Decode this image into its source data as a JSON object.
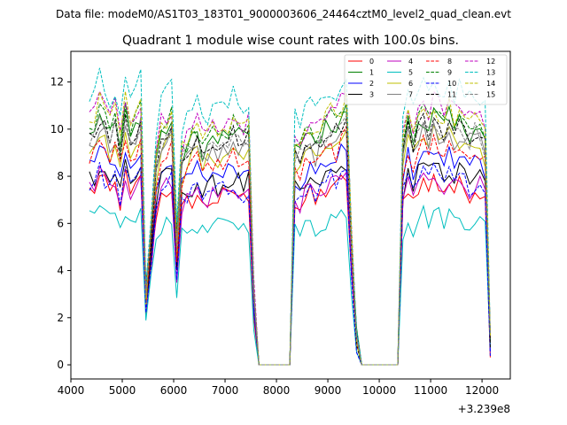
{
  "suptitle": "Data file: modeM0/AS1T03_183T01_9000003606_24464cztM0_level2_quad_clean.evt",
  "chart_data": {
    "type": "line",
    "title": "Quadrant 1 module wise count rates with 100.0s bins.",
    "xlabel": "",
    "ylabel": "",
    "offset_label": "+3.239e8",
    "xlim": [
      4000,
      12550
    ],
    "ylim": [
      -0.6,
      13.3
    ],
    "xticks": [
      4000,
      5000,
      6000,
      7000,
      8000,
      9000,
      10000,
      11000,
      12000
    ],
    "yticks": [
      0,
      2,
      4,
      6,
      8,
      10,
      12
    ],
    "grid": false,
    "legend_position": "top-right",
    "x": [
      4360,
      4460,
      4560,
      4660,
      4760,
      4860,
      4960,
      5060,
      5160,
      5260,
      5360,
      5460,
      5560,
      5660,
      5760,
      5860,
      5960,
      6060,
      6160,
      6260,
      6360,
      6460,
      6560,
      6660,
      6760,
      6860,
      6960,
      7060,
      7160,
      7260,
      7360,
      7460,
      7560,
      7660,
      7760,
      7860,
      7960,
      8060,
      8160,
      8260,
      8360,
      8460,
      8560,
      8660,
      8760,
      8860,
      8960,
      9060,
      9160,
      9260,
      9360,
      9460,
      9560,
      9660,
      9760,
      9860,
      9960,
      10060,
      10160,
      10260,
      10360,
      10460,
      10560,
      10660,
      10760,
      10860,
      10960,
      11060,
      11160,
      11260,
      11360,
      11460,
      11560,
      11660,
      11760,
      11860,
      11960,
      12060,
      12160
    ],
    "base_profile": [
      0.97,
      0.98,
      1.04,
      1.0,
      0.95,
      1.0,
      0.9,
      1.05,
      0.93,
      0.98,
      1.03,
      0.3,
      0.55,
      0.85,
      0.95,
      0.97,
      1.0,
      0.5,
      0.85,
      0.9,
      0.92,
      0.95,
      0.88,
      0.9,
      0.93,
      0.92,
      0.94,
      0.93,
      0.97,
      0.95,
      0.92,
      0.95,
      0.3,
      0,
      0,
      0,
      0,
      0,
      0,
      0,
      0.9,
      0.88,
      0.92,
      0.95,
      0.9,
      0.95,
      0.97,
      1.0,
      0.98,
      1.02,
      1.05,
      0.5,
      0.12,
      0,
      0,
      0,
      0,
      0,
      0,
      0,
      0,
      0.9,
      1.0,
      0.92,
      1.0,
      1.02,
      0.98,
      1.04,
      1.0,
      0.98,
      1.02,
      0.97,
      1.0,
      0.98,
      0.96,
      0.99,
      0.97,
      0.92,
      0.1
    ],
    "series": [
      {
        "name": "0",
        "level": 7.6,
        "color": "#ff0000",
        "dash": "solid"
      },
      {
        "name": "1",
        "level": 10.3,
        "color": "#008000",
        "dash": "solid"
      },
      {
        "name": "2",
        "level": 8.8,
        "color": "#0000ff",
        "dash": "solid"
      },
      {
        "name": "3",
        "level": 8.2,
        "color": "#000000",
        "dash": "solid"
      },
      {
        "name": "4",
        "level": 7.8,
        "color": "#bf00bf",
        "dash": "solid"
      },
      {
        "name": "5",
        "level": 6.3,
        "color": "#00bfbf",
        "dash": "solid"
      },
      {
        "name": "6",
        "level": 9.5,
        "color": "#bfbf00",
        "dash": "solid"
      },
      {
        "name": "7",
        "level": 9.8,
        "color": "#808080",
        "dash": "solid"
      },
      {
        "name": "8",
        "level": 9.2,
        "color": "#ff0000",
        "dash": "dashed"
      },
      {
        "name": "9",
        "level": 10.5,
        "color": "#008000",
        "dash": "dashed"
      },
      {
        "name": "10",
        "level": 7.9,
        "color": "#0000ff",
        "dash": "dashed"
      },
      {
        "name": "11",
        "level": 10.1,
        "color": "#000000",
        "dash": "dashed"
      },
      {
        "name": "12",
        "level": 11.0,
        "color": "#bf00bf",
        "dash": "dashed"
      },
      {
        "name": "13",
        "level": 11.8,
        "color": "#00bfbf",
        "dash": "dashed"
      },
      {
        "name": "14",
        "level": 10.7,
        "color": "#bfbf00",
        "dash": "dashed"
      },
      {
        "name": "15",
        "level": 10.0,
        "color": "#808080",
        "dash": "dashed"
      }
    ]
  }
}
